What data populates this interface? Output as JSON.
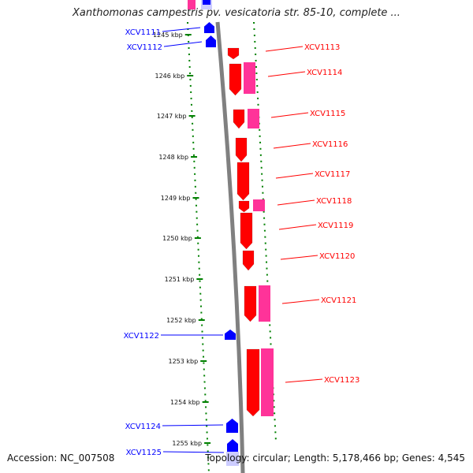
{
  "title": "Xanthomonas campestris pv. vesicatoria str. 85-10, complete ...",
  "footer": {
    "accession": "Accession: NC_007508",
    "stats": "Topology: circular; Length: 5,178,466 bp; Genes: 4,545"
  },
  "colors": {
    "forward_primary": "#ff0000",
    "forward_secondary": "#ff3399",
    "reverse": "#0000ff",
    "reverse_light": "#ccccff",
    "backbone": "#808080",
    "ruler": "#008000"
  },
  "ruler_marks": [
    "1245 kbp",
    "1246 kbp",
    "1247 kbp",
    "1248 kbp",
    "1249 kbp",
    "1250 kbp",
    "1251 kbp",
    "1252 kbp",
    "1253 kbp",
    "1254 kbp",
    "1255 kbp"
  ],
  "gene_labels": {
    "forward": [
      "XCV1113",
      "XCV1114",
      "XCV1115",
      "XCV1116",
      "XCV1117",
      "XCV1118",
      "XCV1119",
      "XCV1120",
      "XCV1121",
      "XCV1123"
    ],
    "reverse": [
      "XCV1111",
      "XCV1112",
      "XCV1122",
      "XCV1124",
      "XCV1125"
    ]
  }
}
